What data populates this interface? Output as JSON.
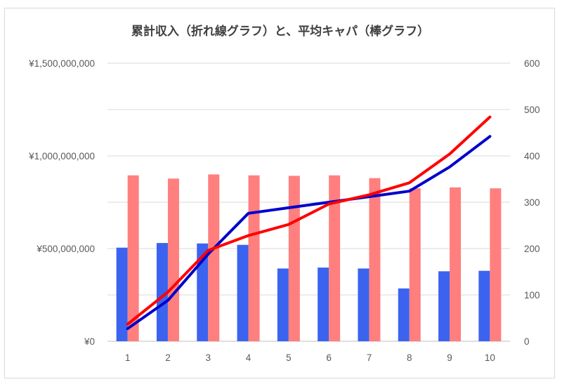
{
  "chart_data": {
    "type": "bar",
    "title": "累計収入（折れ線グラフ）と、平均キャパ（棒グラフ）",
    "categories": [
      "1",
      "2",
      "3",
      "4",
      "5",
      "6",
      "7",
      "8",
      "9",
      "10"
    ],
    "y_left": {
      "ylim": [
        0,
        1500000000
      ],
      "ticks": [
        0,
        500000000,
        1000000000,
        1500000000
      ],
      "tick_labels": [
        "¥0",
        "¥500,000,000",
        "¥1,000,000,000",
        "¥1,500,000,000"
      ]
    },
    "y_right": {
      "ylim": [
        0,
        600
      ],
      "ticks": [
        0,
        100,
        200,
        300,
        400,
        500,
        600
      ],
      "tick_labels": [
        "0",
        "100",
        "200",
        "300",
        "400",
        "500",
        "600"
      ]
    },
    "bar_series": [
      {
        "axis": "right",
        "color": "#3b63f0",
        "values": [
          202,
          212,
          211,
          208,
          157,
          159,
          157,
          114,
          151,
          152
        ]
      },
      {
        "axis": "right",
        "color": "#ff7f7f",
        "values": [
          358,
          351,
          360,
          358,
          357,
          358,
          352,
          330,
          332,
          330
        ]
      }
    ],
    "line_series": [
      {
        "axis": "left",
        "color": "#0000cc",
        "values": [
          68000000,
          220000000,
          470000000,
          690000000,
          720000000,
          750000000,
          780000000,
          810000000,
          940000000,
          1105000000
        ]
      },
      {
        "axis": "left",
        "color": "#ff0000",
        "values": [
          92000000,
          265000000,
          490000000,
          570000000,
          630000000,
          740000000,
          790000000,
          855000000,
          1010000000,
          1210000000
        ]
      }
    ],
    "grid": true,
    "legend": "none"
  }
}
